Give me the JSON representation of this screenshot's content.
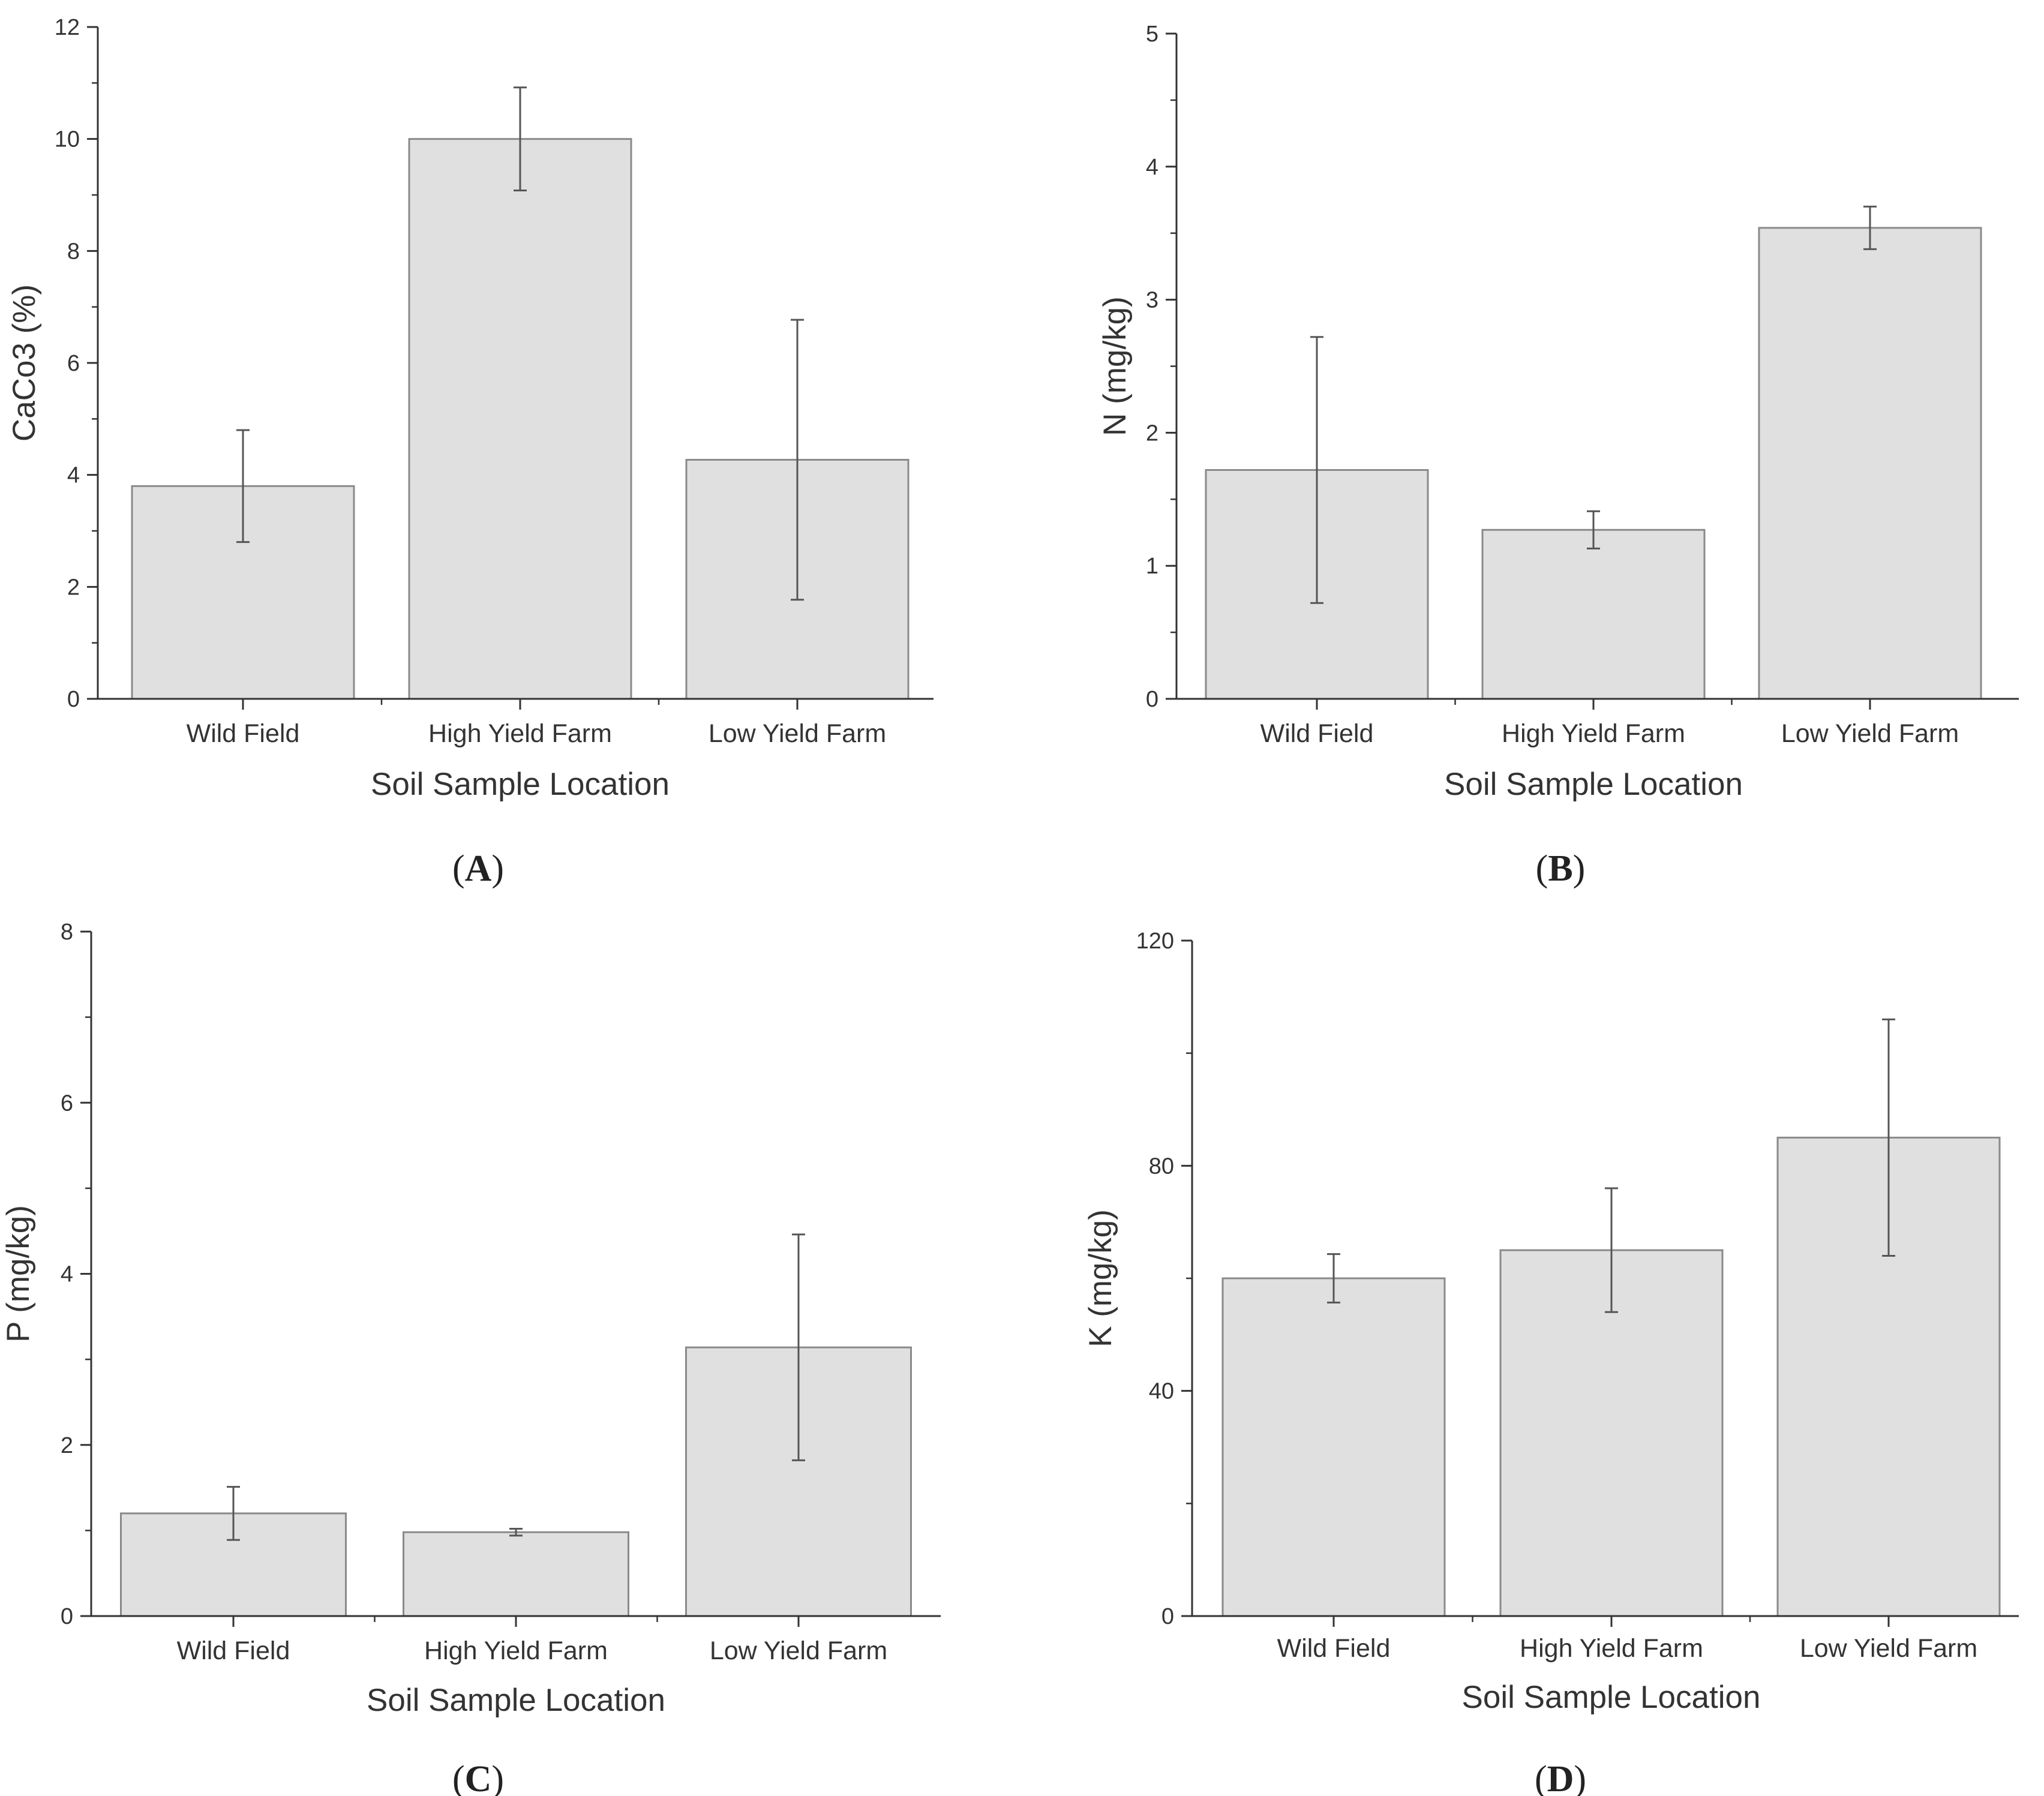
{
  "chart_data": [
    {
      "id": "A",
      "type": "bar",
      "panel_label": "A",
      "categories": [
        "Wild Field",
        "High Yield Farm",
        "Low Yield Farm"
      ],
      "values": [
        3.8,
        10.0,
        4.27
      ],
      "errors": [
        1.0,
        0.92,
        2.5
      ],
      "xlabel": "Soil Sample Location",
      "ylabel": "CaCo3 (%)",
      "ylim": [
        0,
        12
      ],
      "yticks": [
        0,
        2,
        4,
        6,
        8,
        10,
        12
      ],
      "minor_step": 1,
      "grid": false
    },
    {
      "id": "B",
      "type": "bar",
      "panel_label": "B",
      "categories": [
        "Wild Field",
        "High Yield Farm",
        "Low Yield Farm"
      ],
      "values": [
        1.72,
        1.27,
        3.54
      ],
      "errors": [
        1.0,
        0.14,
        0.16
      ],
      "xlabel": "Soil Sample Location",
      "ylabel": "N (mg/kg)",
      "ylim": [
        0,
        5
      ],
      "yticks": [
        0,
        1,
        2,
        3,
        4,
        5
      ],
      "minor_step": 0.5,
      "grid": false
    },
    {
      "id": "C",
      "type": "bar",
      "panel_label": "C",
      "categories": [
        "Wild Field",
        "High Yield Farm",
        "Low Yield Farm"
      ],
      "values": [
        1.2,
        0.98,
        3.14
      ],
      "errors": [
        0.31,
        0.04,
        1.32
      ],
      "xlabel": "Soil Sample Location",
      "ylabel": "P (mg/kg)",
      "ylim": [
        0,
        8
      ],
      "yticks": [
        0,
        2,
        4,
        6,
        8
      ],
      "minor_step": 1,
      "grid": false
    },
    {
      "id": "D",
      "type": "bar",
      "panel_label": "D",
      "categories": [
        "Wild Field",
        "High Yield Farm",
        "Low Yield Farm"
      ],
      "values": [
        60,
        65,
        85
      ],
      "errors": [
        4.3,
        11,
        21
      ],
      "xlabel": "Soil Sample Location",
      "ylabel": "K (mg/kg)",
      "ylim": [
        0,
        120
      ],
      "yticks": [
        0,
        40,
        80,
        120
      ],
      "minor_step": 20,
      "grid": false
    }
  ],
  "colors": {
    "bar_fill": "#e0e0e0",
    "bar_stroke": "#8a8a8a",
    "axis": "#333333",
    "errorbar": "#555555"
  }
}
